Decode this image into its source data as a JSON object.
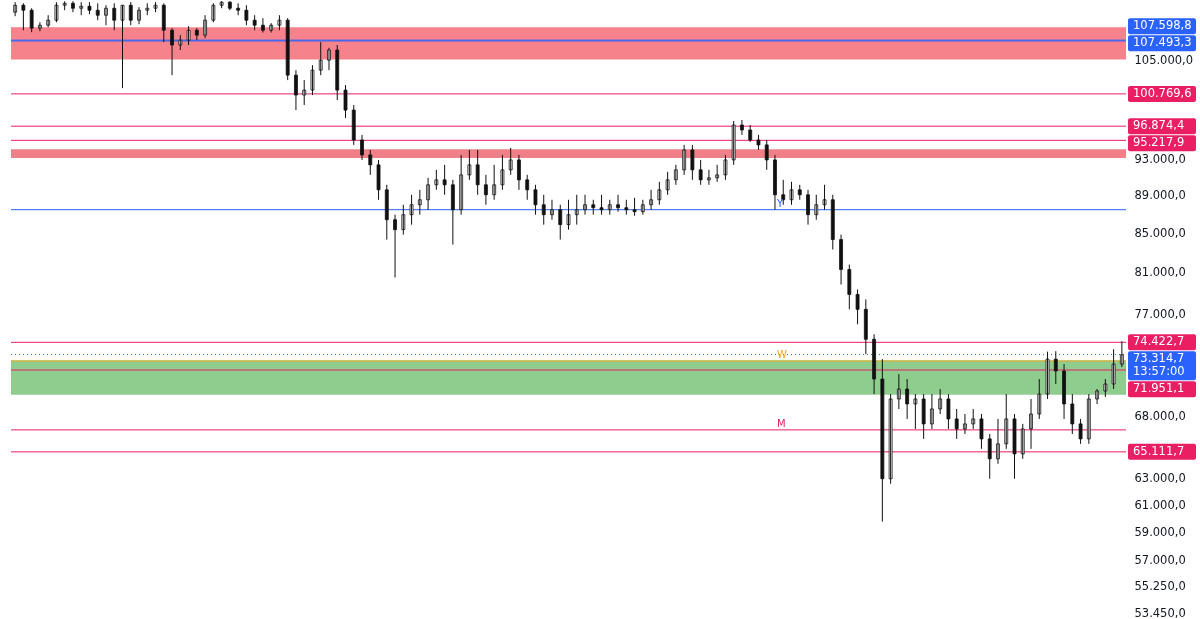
{
  "chart_data": {
    "type": "candlestick",
    "log": true,
    "tick_labels": "y",
    "grid": false,
    "categories": [
      null,
      null,
      null,
      null,
      null,
      null,
      null,
      null,
      null,
      null,
      null,
      null,
      null,
      null,
      null,
      null,
      null,
      null,
      null,
      null,
      null,
      null,
      null,
      null,
      null,
      null,
      null,
      null,
      null,
      null,
      null,
      null,
      null,
      null,
      null,
      null,
      null,
      null,
      null,
      null,
      null,
      null,
      null,
      null,
      null,
      null,
      null,
      null,
      null,
      null,
      null,
      null,
      null,
      null,
      null,
      null,
      null,
      null,
      null,
      null,
      null,
      null,
      null,
      null,
      null,
      null,
      null,
      null,
      null,
      null,
      null,
      null,
      null,
      null,
      null,
      null,
      null,
      null,
      null,
      null,
      null,
      null,
      null,
      null,
      null,
      null,
      null,
      null,
      null,
      null,
      null,
      null,
      null,
      null,
      null,
      null,
      null,
      null,
      null,
      null,
      null,
      null,
      null,
      null,
      null,
      null,
      null,
      null,
      null,
      null,
      null,
      null,
      null,
      null,
      null,
      null,
      null,
      null,
      null,
      null,
      null,
      null,
      null,
      null,
      null,
      null,
      null,
      null,
      null,
      null,
      null,
      null,
      null,
      null,
      null
    ],
    "ylim": [
      53100,
      113000
    ],
    "yticks": [
      {
        "value": 105000,
        "label": "105.000,0"
      },
      {
        "value": 93000,
        "label": "93.000,0"
      },
      {
        "value": 89000,
        "label": "89.000,0"
      },
      {
        "value": 85000,
        "label": "85.000,0"
      },
      {
        "value": 81000,
        "label": "81.000,0"
      },
      {
        "value": 77000,
        "label": "77.000,0"
      },
      {
        "value": 68000,
        "label": "68.000,0"
      },
      {
        "value": 63000,
        "label": "63.000,0"
      },
      {
        "value": 61000,
        "label": "61.000,0"
      },
      {
        "value": 59000,
        "label": "59.000,0"
      },
      {
        "value": 57000,
        "label": "57.000,0"
      },
      {
        "value": 55250,
        "label": "55.250,0"
      },
      {
        "value": 53450,
        "label": "53.450,0"
      }
    ],
    "bands": [
      {
        "axis": "y",
        "from": 105100,
        "to": 109300,
        "color": "#f6838b"
      },
      {
        "axis": "y",
        "from": 93200,
        "to": 94200,
        "color": "#f08088"
      },
      {
        "axis": "y",
        "from": 69800,
        "to": 72800,
        "color": "#8fcd8f"
      }
    ],
    "ref_lines": [
      {
        "axis": "y",
        "value": 107598.8,
        "label": "107.598,8",
        "color": "#2962ff"
      },
      {
        "axis": "y",
        "value": 107493.3,
        "label": "107.493,3",
        "color": "#2962ff"
      },
      {
        "axis": "y",
        "value": 100769.6,
        "label": "100.769,6",
        "color": "#e91e63"
      },
      {
        "axis": "y",
        "value": 96874.4,
        "label": "96.874,4",
        "color": "#e91e63"
      },
      {
        "axis": "y",
        "value": 95217.9,
        "label": "95.217,9",
        "color": "#e91e63"
      },
      {
        "axis": "y",
        "value": 87490,
        "color": "#2962ff"
      },
      {
        "axis": "y",
        "value": 74422.7,
        "label": "74.422,7",
        "color": "#e91e63"
      },
      {
        "axis": "y",
        "value": 73314.7,
        "label": "73.314,7\n13:57:00",
        "color": "#2962ff",
        "line_style": "dotted"
      },
      {
        "axis": "y",
        "value": 72740,
        "color": "#f5a623"
      },
      {
        "axis": "y",
        "value": 71951.1,
        "label": "71.951,1",
        "color": "#e91e63"
      },
      {
        "axis": "y",
        "value": 66880,
        "color": "#e91e63"
      },
      {
        "axis": "y",
        "value": 65111.7,
        "label": "65.111,7",
        "color": "#e91e63"
      }
    ],
    "annotations": [
      {
        "text": "Y",
        "y": 87490
      },
      {
        "text": "W",
        "y": 72740
      },
      {
        "text": "M",
        "y": 66880
      }
    ],
    "ohlc": [
      [
        111330,
        112700,
        110790,
        112280
      ],
      [
        112280,
        112550,
        108910,
        111600
      ],
      [
        111600,
        111870,
        108650,
        109180
      ],
      [
        109180,
        109980,
        108780,
        109580
      ],
      [
        109580,
        110920,
        109310,
        110250
      ],
      [
        110250,
        112700,
        109980,
        112280
      ],
      [
        112280,
        112830,
        111600,
        112550
      ],
      [
        112550,
        112830,
        111330,
        111870
      ],
      [
        111870,
        112700,
        110920,
        112140
      ],
      [
        112140,
        112700,
        111060,
        111600
      ],
      [
        111600,
        112550,
        110250,
        110920
      ],
      [
        110920,
        112280,
        109580,
        111870
      ],
      [
        111870,
        112550,
        108910,
        110250
      ],
      [
        110250,
        112280,
        101480,
        112280
      ],
      [
        112280,
        112700,
        109580,
        110250
      ],
      [
        110250,
        112010,
        109710,
        111600
      ],
      [
        111600,
        112550,
        110920,
        111870
      ],
      [
        111870,
        112700,
        111330,
        112280
      ],
      [
        112280,
        112550,
        107340,
        108910
      ],
      [
        108910,
        109180,
        103100,
        106960
      ],
      [
        106960,
        108260,
        106310,
        107600
      ],
      [
        107600,
        109450,
        106960,
        108910
      ],
      [
        108910,
        109180,
        107600,
        108260
      ],
      [
        108260,
        110920,
        107860,
        110250
      ],
      [
        110250,
        112550,
        109980,
        112280
      ],
      [
        112280,
        112830,
        111870,
        112700
      ],
      [
        112700,
        112830,
        111600,
        111870
      ],
      [
        111870,
        112550,
        110920,
        111600
      ],
      [
        111600,
        112280,
        109580,
        110250
      ],
      [
        110250,
        110920,
        108910,
        109580
      ],
      [
        109580,
        110520,
        108600,
        108910
      ],
      [
        108910,
        109850,
        108600,
        109580
      ],
      [
        109580,
        110920,
        108910,
        110250
      ],
      [
        110250,
        110520,
        102480,
        103100
      ],
      [
        103100,
        103730,
        98800,
        100630
      ],
      [
        100630,
        102480,
        99410,
        101240
      ],
      [
        101240,
        104370,
        100630,
        103730
      ],
      [
        103730,
        107340,
        103100,
        105000
      ],
      [
        105000,
        106600,
        103730,
        106310
      ],
      [
        106310,
        106960,
        100020,
        101240
      ],
      [
        101240,
        101860,
        97850,
        98800
      ],
      [
        98800,
        99410,
        94690,
        95260
      ],
      [
        95260,
        95850,
        92970,
        93540
      ],
      [
        93540,
        94110,
        91290,
        92410
      ],
      [
        92410,
        92970,
        88560,
        89640
      ],
      [
        89640,
        90190,
        84360,
        86430
      ],
      [
        86430,
        86960,
        80550,
        85390
      ],
      [
        85390,
        88020,
        84870,
        86960
      ],
      [
        86960,
        89100,
        85910,
        88020
      ],
      [
        88020,
        89640,
        86960,
        88560
      ],
      [
        88560,
        90960,
        87490,
        90190
      ],
      [
        90190,
        91850,
        89640,
        90740
      ],
      [
        90740,
        92410,
        89100,
        90190
      ],
      [
        90190,
        90740,
        83850,
        87490
      ],
      [
        87490,
        93540,
        86960,
        91290
      ],
      [
        91290,
        94110,
        90740,
        92410
      ],
      [
        92410,
        94110,
        89100,
        90190
      ],
      [
        90190,
        91290,
        88020,
        89100
      ],
      [
        89100,
        92410,
        88560,
        90190
      ],
      [
        90190,
        93540,
        89640,
        91850
      ],
      [
        91850,
        94340,
        91290,
        92970
      ],
      [
        92970,
        93540,
        89640,
        90740
      ],
      [
        90740,
        91290,
        88560,
        89640
      ],
      [
        89640,
        90190,
        86960,
        88020
      ],
      [
        88020,
        89100,
        85910,
        86960
      ],
      [
        86960,
        88560,
        86430,
        87490
      ],
      [
        87490,
        88020,
        84360,
        85910
      ],
      [
        85910,
        88560,
        85390,
        86960
      ],
      [
        86960,
        89100,
        85910,
        87490
      ],
      [
        87490,
        89100,
        86960,
        88020
      ],
      [
        88020,
        88560,
        86960,
        87700
      ],
      [
        87700,
        89100,
        86960,
        87490
      ],
      [
        87490,
        88560,
        86960,
        88020
      ],
      [
        88020,
        89100,
        87280,
        87700
      ],
      [
        87700,
        88560,
        86960,
        87490
      ],
      [
        87490,
        88770,
        86850,
        87280
      ],
      [
        87280,
        88560,
        86960,
        88020
      ],
      [
        88020,
        89640,
        87490,
        88560
      ],
      [
        88560,
        90520,
        88020,
        89640
      ],
      [
        89640,
        91630,
        89100,
        90740
      ],
      [
        90740,
        92410,
        90190,
        91850
      ],
      [
        91850,
        94690,
        91290,
        94110
      ],
      [
        94110,
        94690,
        90740,
        91850
      ],
      [
        91850,
        92970,
        90190,
        90740
      ],
      [
        90740,
        91850,
        90190,
        90960
      ],
      [
        90960,
        92410,
        90520,
        91290
      ],
      [
        91290,
        93540,
        90740,
        92970
      ],
      [
        92970,
        97490,
        92410,
        97020
      ],
      [
        97020,
        97610,
        95850,
        96430
      ],
      [
        96430,
        97020,
        95030,
        95260
      ],
      [
        95260,
        95850,
        94110,
        94690
      ],
      [
        94690,
        95260,
        91850,
        92970
      ],
      [
        92970,
        93540,
        87490,
        89100
      ],
      [
        89100,
        90740,
        88020,
        88560
      ],
      [
        88560,
        90520,
        88020,
        89640
      ],
      [
        89640,
        90190,
        88560,
        89100
      ],
      [
        89100,
        89640,
        85910,
        86960
      ],
      [
        86960,
        89100,
        86430,
        88020
      ],
      [
        88020,
        90190,
        87490,
        88560
      ],
      [
        88560,
        89100,
        83340,
        84360
      ],
      [
        84360,
        84870,
        79860,
        81340
      ],
      [
        81340,
        81830,
        77480,
        78900
      ],
      [
        78900,
        79380,
        76080,
        77480
      ],
      [
        77480,
        78420,
        73350,
        74700
      ],
      [
        74700,
        75160,
        69870,
        71160
      ],
      [
        71160,
        72910,
        59800,
        63010
      ],
      [
        63010,
        69870,
        62630,
        69450
      ],
      [
        69450,
        71590,
        68610,
        70300
      ],
      [
        70300,
        71160,
        67780,
        69030
      ],
      [
        69030,
        69870,
        66960,
        69450
      ],
      [
        69450,
        69870,
        66150,
        67370
      ],
      [
        67370,
        69870,
        66960,
        68610
      ],
      [
        68610,
        70300,
        68190,
        69450
      ],
      [
        69450,
        69870,
        66960,
        67780
      ],
      [
        67780,
        68610,
        66150,
        66960
      ],
      [
        66960,
        68190,
        66550,
        67370
      ],
      [
        67370,
        68610,
        66960,
        67780
      ],
      [
        67780,
        68190,
        65350,
        66150
      ],
      [
        66150,
        66550,
        63010,
        64560
      ],
      [
        64560,
        67780,
        64170,
        65750
      ],
      [
        65750,
        69870,
        65350,
        67780
      ],
      [
        67780,
        68190,
        63010,
        64950
      ],
      [
        64950,
        67370,
        64560,
        66960
      ],
      [
        66960,
        69450,
        65350,
        68190
      ],
      [
        68190,
        71160,
        67780,
        69870
      ],
      [
        69870,
        73580,
        69450,
        72910
      ],
      [
        72910,
        73620,
        70730,
        71860
      ],
      [
        71860,
        72470,
        67780,
        69030
      ],
      [
        69030,
        69870,
        66550,
        67370
      ],
      [
        67370,
        67780,
        65750,
        66150
      ],
      [
        66150,
        69870,
        65750,
        69450
      ],
      [
        69450,
        70300,
        69030,
        70130
      ],
      [
        70130,
        71160,
        69620,
        70730
      ],
      [
        70730,
        73800,
        70300,
        72470
      ],
      [
        72470,
        74520,
        72210,
        73300
      ]
    ]
  }
}
